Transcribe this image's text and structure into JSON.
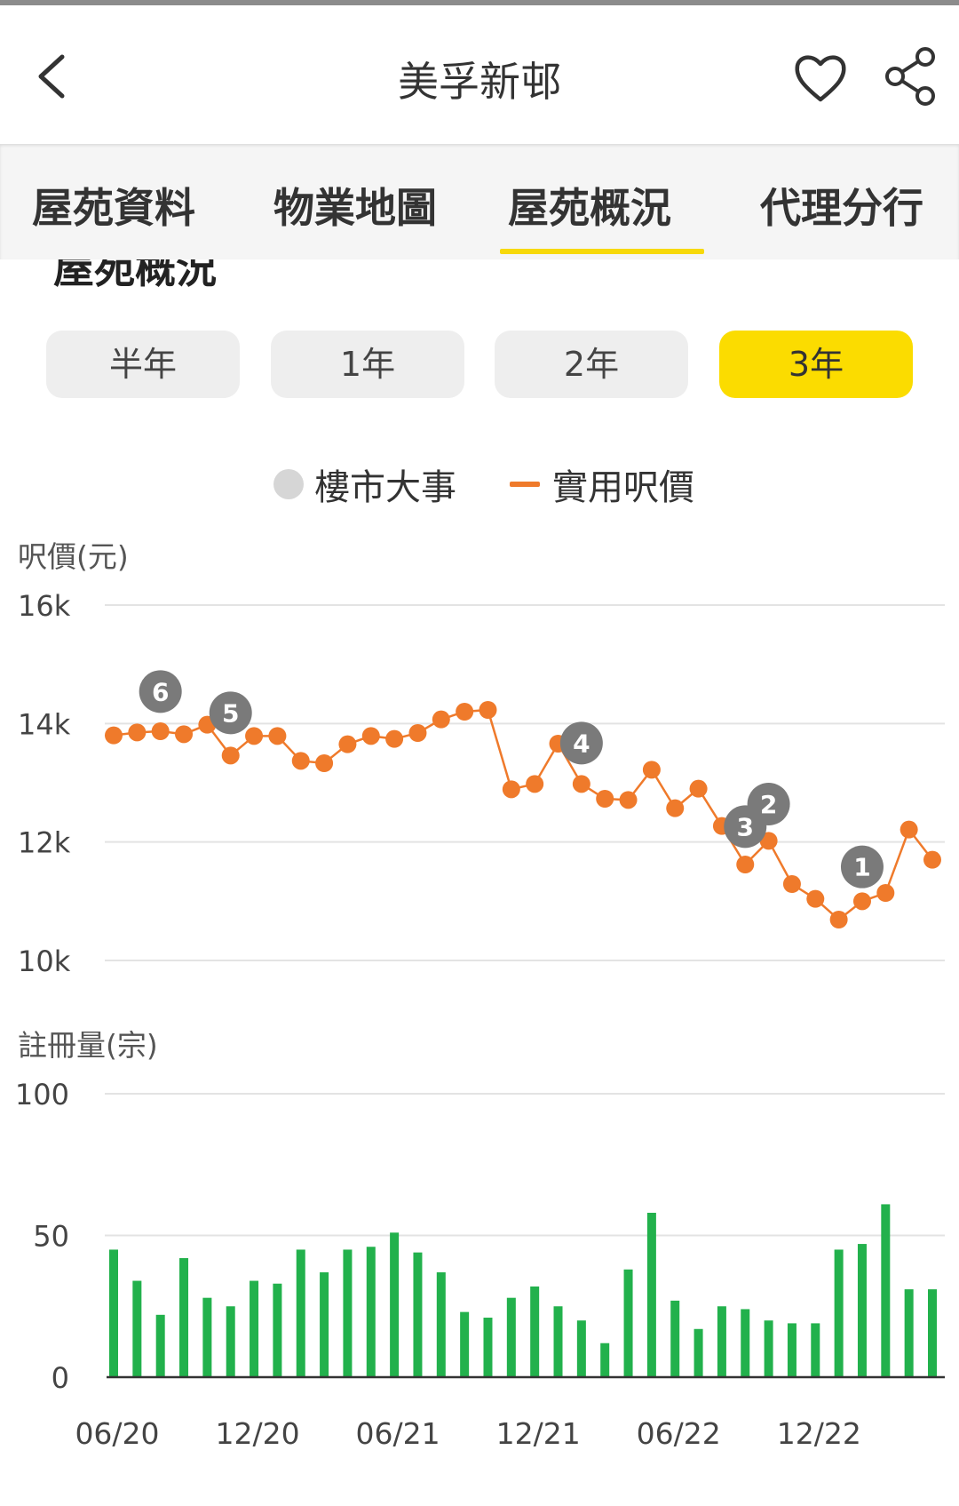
{
  "header": {
    "title": "美孚新邨",
    "back_icon": "chevron-left-icon",
    "favorite_icon": "heart-icon",
    "share_icon": "share-icon"
  },
  "tabs": [
    {
      "label": "屋苑資料",
      "active": false
    },
    {
      "label": "物業地圖",
      "active": false
    },
    {
      "label": "屋苑概況",
      "active": true
    },
    {
      "label": "代理分行",
      "active": false
    }
  ],
  "section": {
    "title": "屋苑概況"
  },
  "ranges": [
    {
      "label": "半年",
      "active": false
    },
    {
      "label": "1年",
      "active": false
    },
    {
      "label": "2年",
      "active": false
    },
    {
      "label": "3年",
      "active": true
    }
  ],
  "legend": {
    "events_label": "樓市大事",
    "price_label": "實用呎價"
  },
  "colors": {
    "accent": "#fbdc00",
    "price_line": "#ef7a2b",
    "bars": "#22b14c",
    "event_marker": "#7a7a7a"
  },
  "chart_data": [
    {
      "type": "line",
      "ylabel": "呎價(元)",
      "y_ticks": [
        "16k",
        "14k",
        "12k",
        "10k"
      ],
      "ylim": [
        10000,
        16000
      ],
      "series": [
        {
          "name": "實用呎價",
          "values": [
            13800,
            13850,
            13870,
            13820,
            13980,
            13460,
            13790,
            13790,
            13370,
            13330,
            13650,
            13790,
            13740,
            13840,
            14070,
            14200,
            14230,
            12890,
            12980,
            13660,
            12980,
            12730,
            12710,
            13220,
            12570,
            12900,
            12270,
            11620,
            12020,
            11290,
            11040,
            10690,
            11000,
            11140,
            12210,
            11700
          ]
        }
      ],
      "events": [
        {
          "label": "6",
          "index": 2,
          "price": 14540
        },
        {
          "label": "5",
          "index": 5,
          "price": 14180
        },
        {
          "label": "4",
          "index": 20,
          "price": 13670
        },
        {
          "label": "3",
          "index": 27,
          "price": 12260
        },
        {
          "label": "2",
          "index": 28,
          "price": 12640
        },
        {
          "label": "1",
          "index": 32,
          "price": 11580
        }
      ]
    },
    {
      "type": "bar",
      "ylabel": "註冊量(宗)",
      "y_ticks": [
        "100",
        "50",
        "0"
      ],
      "ylim": [
        0,
        100
      ],
      "values": [
        45,
        34,
        22,
        42,
        28,
        25,
        34,
        33,
        45,
        37,
        45,
        46,
        51,
        44,
        37,
        23,
        21,
        28,
        32,
        25,
        20,
        12,
        38,
        58,
        27,
        17,
        25,
        24,
        20,
        19,
        19,
        45,
        47,
        61,
        31,
        31
      ],
      "x_tick_labels": [
        "06/20",
        "12/20",
        "06/21",
        "12/21",
        "06/22",
        "12/22"
      ]
    }
  ]
}
